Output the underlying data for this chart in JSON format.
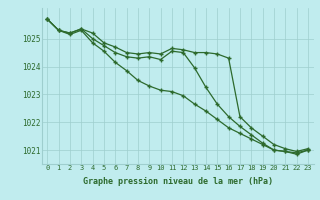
{
  "x": [
    0,
    1,
    2,
    3,
    4,
    5,
    6,
    7,
    8,
    9,
    10,
    11,
    12,
    13,
    14,
    15,
    16,
    17,
    18,
    19,
    20,
    21,
    22,
    23
  ],
  "line1": [
    1025.7,
    1025.3,
    1025.2,
    1025.35,
    1025.2,
    1024.85,
    1024.7,
    1024.5,
    1024.45,
    1024.5,
    1024.45,
    1024.65,
    1024.6,
    1024.5,
    1024.5,
    1024.45,
    1024.3,
    1022.2,
    1021.8,
    1021.5,
    1021.2,
    1021.05,
    1020.95,
    1021.05
  ],
  "line2": [
    1025.7,
    1025.3,
    1025.2,
    1025.35,
    1025.0,
    1024.75,
    1024.5,
    1024.35,
    1024.3,
    1024.35,
    1024.25,
    1024.55,
    1024.5,
    1023.95,
    1023.25,
    1022.65,
    1022.2,
    1021.85,
    1021.55,
    1021.25,
    1021.0,
    1020.95,
    1020.9,
    1021.0
  ],
  "line3": [
    1025.7,
    1025.3,
    1025.15,
    1025.3,
    1024.85,
    1024.55,
    1024.15,
    1023.85,
    1023.5,
    1023.3,
    1023.15,
    1023.1,
    1022.95,
    1022.65,
    1022.4,
    1022.1,
    1021.8,
    1021.6,
    1021.4,
    1021.2,
    1021.0,
    1020.95,
    1020.85,
    1021.0
  ],
  "line_color": "#2d6a2d",
  "bg_color": "#c0ecee",
  "grid_color": "#9ecece",
  "xlabel": "Graphe pression niveau de la mer (hPa)",
  "ylim": [
    1020.5,
    1026.1
  ],
  "yticks": [
    1021,
    1022,
    1023,
    1024,
    1025
  ],
  "xticks": [
    0,
    1,
    2,
    3,
    4,
    5,
    6,
    7,
    8,
    9,
    10,
    11,
    12,
    13,
    14,
    15,
    16,
    17,
    18,
    19,
    20,
    21,
    22,
    23
  ]
}
